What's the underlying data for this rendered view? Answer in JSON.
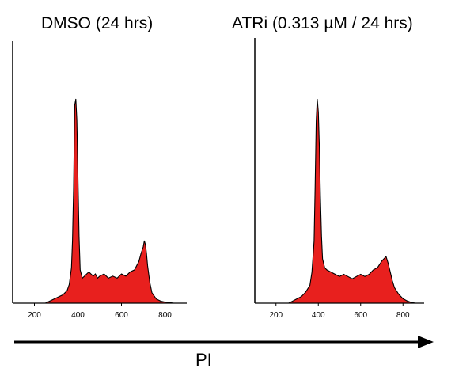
{
  "chart_data": [
    {
      "type": "area",
      "title": "DMSO (24 hrs)",
      "xlim": [
        100,
        900
      ],
      "xticks": [
        "200",
        "400",
        "600",
        "800"
      ],
      "fill_color": "#e8201e",
      "line_color": "#000000",
      "x": [
        250,
        270,
        290,
        310,
        330,
        350,
        360,
        370,
        375,
        380,
        385,
        390,
        395,
        400,
        405,
        410,
        420,
        430,
        440,
        450,
        460,
        470,
        480,
        490,
        500,
        520,
        540,
        560,
        580,
        600,
        620,
        640,
        660,
        680,
        690,
        700,
        705,
        710,
        715,
        720,
        730,
        740,
        760,
        780,
        800,
        820,
        840,
        860
      ],
      "y": [
        0,
        1,
        2,
        3,
        4,
        6,
        9,
        17,
        30,
        55,
        95,
        98,
        88,
        60,
        32,
        16,
        12,
        13,
        14,
        15,
        14,
        13,
        14,
        12,
        13,
        14,
        12,
        13,
        12,
        14,
        13,
        15,
        16,
        20,
        24,
        27,
        30,
        28,
        24,
        18,
        10,
        5,
        2,
        1,
        0.5,
        0.3,
        0,
        0
      ]
    },
    {
      "type": "area",
      "title": "ATRi (0.313 µM / 24 hrs)",
      "xlim": [
        100,
        900
      ],
      "xticks": [
        "200",
        "400",
        "600",
        "800"
      ],
      "fill_color": "#e8201e",
      "line_color": "#000000",
      "x": [
        260,
        280,
        300,
        320,
        340,
        360,
        370,
        380,
        385,
        390,
        395,
        400,
        405,
        410,
        415,
        420,
        430,
        440,
        460,
        480,
        500,
        520,
        540,
        560,
        580,
        600,
        620,
        640,
        660,
        680,
        700,
        710,
        720,
        730,
        740,
        750,
        760,
        780,
        800,
        820,
        840,
        860
      ],
      "y": [
        0,
        1,
        2,
        3,
        5,
        8,
        14,
        28,
        52,
        82,
        92,
        86,
        70,
        48,
        30,
        20,
        16,
        15,
        14,
        13,
        12,
        13,
        12,
        11,
        12,
        13,
        12,
        13,
        15,
        16,
        19,
        20,
        21,
        18,
        14,
        10,
        7,
        4,
        2,
        1,
        0.3,
        0
      ]
    }
  ],
  "xlabel": "PI"
}
